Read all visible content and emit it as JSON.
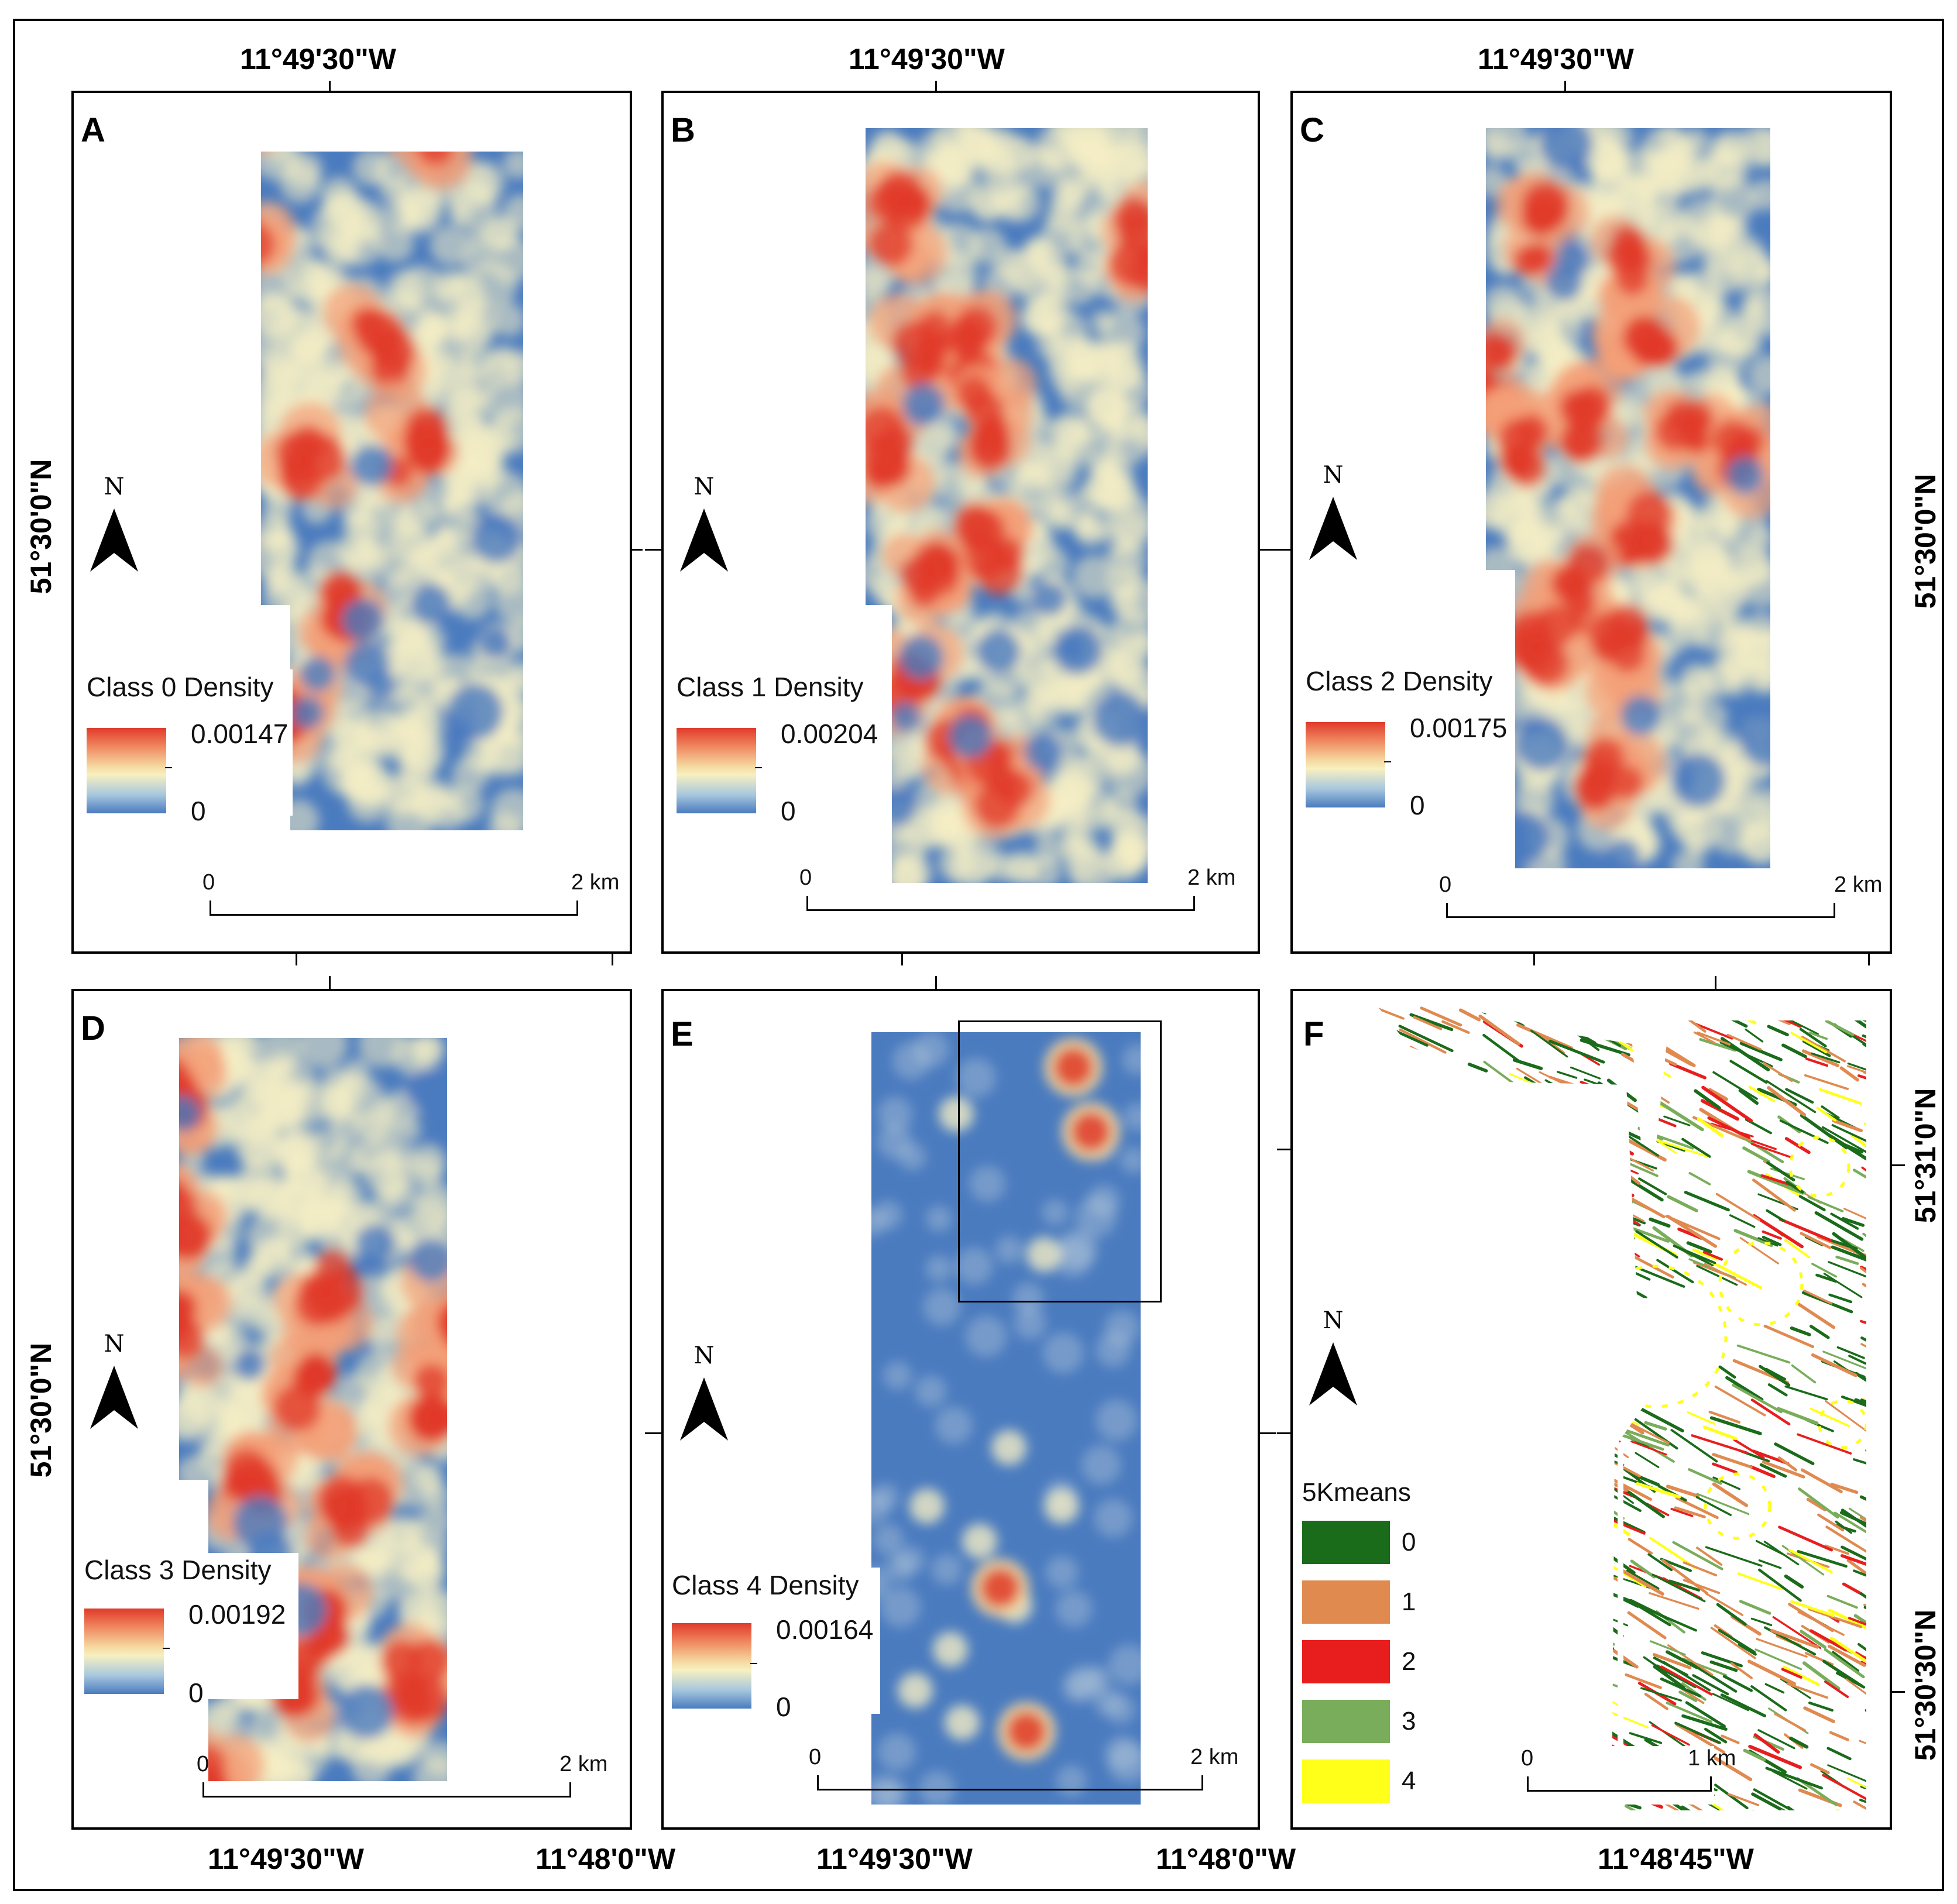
{
  "panels": [
    {
      "id": "A",
      "legend_title": "Class 0 Density",
      "max_label": "0.00147",
      "min_label": "0",
      "scale_start": "0",
      "scale_end": "2 km"
    },
    {
      "id": "B",
      "legend_title": "Class 1 Density",
      "max_label": "0.00204",
      "min_label": "0",
      "scale_start": "0",
      "scale_end": "2 km"
    },
    {
      "id": "C",
      "legend_title": "Class 2 Density",
      "max_label": "0.00175",
      "min_label": "0",
      "scale_start": "0",
      "scale_end": "2 km"
    },
    {
      "id": "D",
      "legend_title": "Class 3 Density",
      "max_label": "0.00192",
      "min_label": "0",
      "scale_start": "0",
      "scale_end": "2 km"
    },
    {
      "id": "E",
      "legend_title": "Class 4 Density",
      "max_label": "0.00164",
      "min_label": "0",
      "scale_start": "0",
      "scale_end": "2 km"
    },
    {
      "id": "F",
      "legend_title": "5Kmeans",
      "scale_start": "0",
      "scale_end": "1 km",
      "classes": [
        {
          "label": "0",
          "color": "#1a6b1a"
        },
        {
          "label": "1",
          "color": "#e08a50"
        },
        {
          "label": "2",
          "color": "#e81e1e"
        },
        {
          "label": "3",
          "color": "#79ad5b"
        },
        {
          "label": "4",
          "color": "#ffff1a"
        }
      ]
    }
  ],
  "north_letter": "N",
  "coords": {
    "top": [
      "11°49'30\"W",
      "11°49'30\"W",
      "11°49'30\"W"
    ],
    "bottom": [
      "11°49'30\"W",
      "11°48'0\"W",
      "11°49'30\"W",
      "11°48'0\"W",
      "11°48'45\"W"
    ],
    "left": [
      "51°30'0\"N",
      "51°30'0\"N"
    ],
    "right": [
      "51°30'0\"N",
      "51°31'0\"N",
      "51°30'30\"N"
    ]
  },
  "colors": {
    "density_low": "#4a7bbf",
    "density_mid": "#f7f0c0",
    "density_high": "#e03a2a"
  }
}
